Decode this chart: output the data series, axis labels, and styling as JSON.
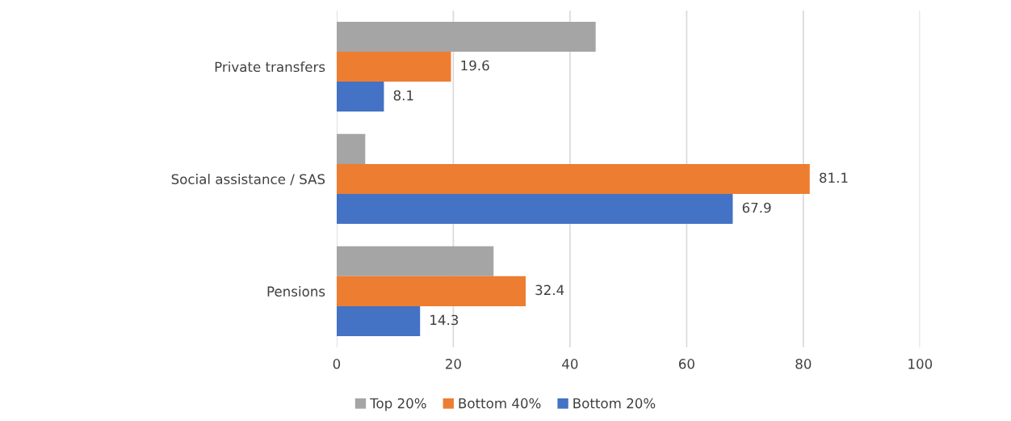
{
  "chart_data": {
    "type": "bar",
    "orientation": "horizontal",
    "categories": [
      "Private transfers",
      "Social assistance / SAS",
      "Pensions"
    ],
    "series": [
      {
        "name": "Top 20%",
        "color": "#a5a5a5",
        "values": [
          44.4,
          4.9,
          26.9
        ],
        "value_labels": [
          null,
          null,
          null
        ]
      },
      {
        "name": "Bottom 40%",
        "color": "#ed7d31",
        "values": [
          19.6,
          81.1,
          32.4
        ],
        "value_labels": [
          "19.6",
          "81.1",
          "32.4"
        ]
      },
      {
        "name": "Bottom 20%",
        "color": "#4472c4",
        "values": [
          8.1,
          67.9,
          14.3
        ],
        "value_labels": [
          "8.1",
          "67.9",
          "14.3"
        ]
      }
    ],
    "xlim": [
      0,
      100
    ],
    "xticks": [
      0,
      20,
      40,
      60,
      80,
      100
    ],
    "grid": "x",
    "legend": "bottom"
  }
}
